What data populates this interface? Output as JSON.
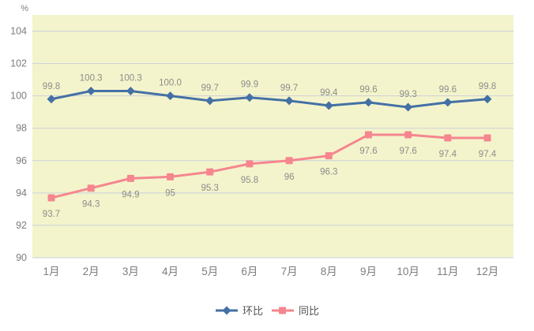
{
  "chart_data": {
    "type": "line",
    "unit_label": "%",
    "categories": [
      "1月",
      "2月",
      "3月",
      "4月",
      "5月",
      "6月",
      "7月",
      "8月",
      "9月",
      "10月",
      "11月",
      "12月"
    ],
    "series": [
      {
        "name": "环比",
        "marker": "diamond",
        "color": "#4471a5",
        "values": [
          99.8,
          100.3,
          100.3,
          100.0,
          99.7,
          99.9,
          99.7,
          99.4,
          99.6,
          99.3,
          99.6,
          99.8
        ],
        "labels": [
          "99.8",
          "100.3",
          "100.3",
          "100.0",
          "99.7",
          "99.9",
          "99.7",
          "99.4",
          "99.6",
          "99.3",
          "99.6",
          "99.8"
        ],
        "label_position": "above"
      },
      {
        "name": "同比",
        "marker": "square",
        "color": "#f5868f",
        "values": [
          93.7,
          94.3,
          94.9,
          95,
          95.3,
          95.8,
          96,
          96.3,
          97.6,
          97.6,
          97.4,
          97.4
        ],
        "labels": [
          "93.7",
          "94.3",
          "94.9",
          "95",
          "95.3",
          "95.8",
          "96",
          "96.3",
          "97.6",
          "97.6",
          "97.4",
          "97.4"
        ],
        "label_position": "below"
      }
    ],
    "ylim": [
      90,
      105
    ],
    "yticks": [
      90,
      92,
      94,
      96,
      98,
      100,
      102,
      104
    ],
    "grid": true,
    "legend_position": "bottom",
    "colors": {
      "plot_background": "#f4f4cc",
      "grid_line": "#cbd0d8",
      "axis_text": "#7d7d7d",
      "data_label_text": "#8c8c8c"
    }
  }
}
